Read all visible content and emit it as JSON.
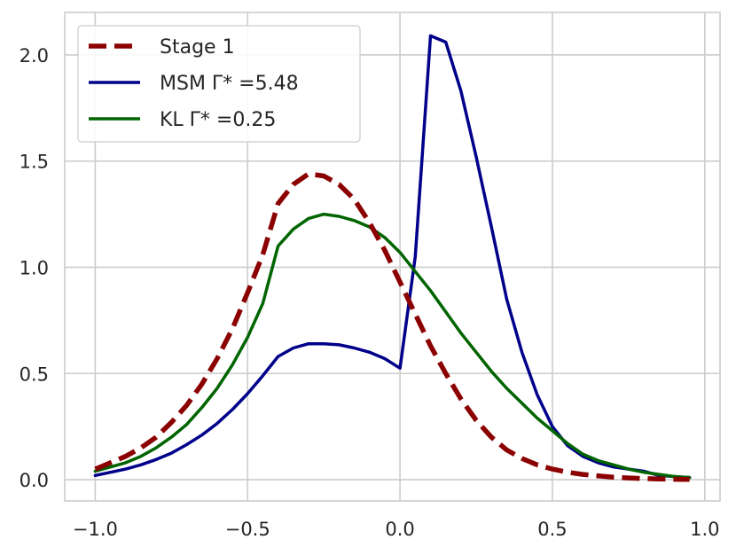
{
  "chart_data": {
    "type": "line",
    "title": "",
    "xlabel": "",
    "ylabel": "",
    "xlim": [
      -1.1,
      1.05
    ],
    "ylim": [
      -0.1,
      2.2
    ],
    "xticks": [
      -1.0,
      -0.5,
      0.0,
      0.5,
      1.0
    ],
    "xtick_labels": [
      "−1.0",
      "−0.5",
      "0.0",
      "0.5",
      "1.0"
    ],
    "yticks": [
      0.0,
      0.5,
      1.0,
      1.5,
      2.0
    ],
    "ytick_labels": [
      "0.0",
      "0.5",
      "1.0",
      "1.5",
      "2.0"
    ],
    "grid": true,
    "legend_position": "top-left",
    "series": [
      {
        "name": "Stage 1",
        "color": "#8b0000",
        "style": "dashed",
        "x": [
          -1.0,
          -0.95,
          -0.9,
          -0.85,
          -0.8,
          -0.75,
          -0.7,
          -0.65,
          -0.6,
          -0.55,
          -0.5,
          -0.45,
          -0.4,
          -0.35,
          -0.3,
          -0.25,
          -0.2,
          -0.15,
          -0.1,
          -0.05,
          0.0,
          0.05,
          0.1,
          0.15,
          0.2,
          0.25,
          0.3,
          0.35,
          0.4,
          0.45,
          0.5,
          0.55,
          0.6,
          0.65,
          0.7,
          0.75,
          0.8,
          0.85,
          0.9,
          0.95
        ],
        "values": [
          0.05,
          0.08,
          0.11,
          0.15,
          0.2,
          0.27,
          0.35,
          0.45,
          0.57,
          0.71,
          0.88,
          1.06,
          1.3,
          1.39,
          1.44,
          1.43,
          1.39,
          1.32,
          1.21,
          1.08,
          0.93,
          0.78,
          0.63,
          0.5,
          0.38,
          0.28,
          0.2,
          0.14,
          0.1,
          0.07,
          0.05,
          0.035,
          0.025,
          0.018,
          0.012,
          0.008,
          0.005,
          0.003,
          0.002,
          0.001
        ]
      },
      {
        "name": "MSM Γ* =5.48",
        "color": "#00008b",
        "style": "solid",
        "x": [
          -1.0,
          -0.95,
          -0.9,
          -0.85,
          -0.8,
          -0.75,
          -0.7,
          -0.65,
          -0.6,
          -0.55,
          -0.5,
          -0.45,
          -0.4,
          -0.35,
          -0.3,
          -0.25,
          -0.2,
          -0.15,
          -0.1,
          -0.05,
          0.0,
          0.05,
          0.1,
          0.15,
          0.2,
          0.25,
          0.3,
          0.35,
          0.4,
          0.45,
          0.5,
          0.55,
          0.6,
          0.65,
          0.7,
          0.75,
          0.8,
          0.85,
          0.9,
          0.95
        ],
        "values": [
          0.02,
          0.035,
          0.05,
          0.07,
          0.095,
          0.125,
          0.165,
          0.21,
          0.265,
          0.33,
          0.405,
          0.49,
          0.58,
          0.62,
          0.64,
          0.64,
          0.635,
          0.62,
          0.6,
          0.57,
          0.525,
          1.05,
          2.09,
          2.06,
          1.83,
          1.52,
          1.19,
          0.85,
          0.6,
          0.4,
          0.25,
          0.16,
          0.11,
          0.08,
          0.06,
          0.05,
          0.04,
          0.02,
          0.015,
          0.01
        ]
      },
      {
        "name": "KL Γ* =0.25",
        "color": "#006400",
        "style": "solid",
        "x": [
          -1.0,
          -0.95,
          -0.9,
          -0.85,
          -0.8,
          -0.75,
          -0.7,
          -0.65,
          -0.6,
          -0.55,
          -0.5,
          -0.45,
          -0.4,
          -0.35,
          -0.3,
          -0.25,
          -0.2,
          -0.15,
          -0.1,
          -0.05,
          0.0,
          0.05,
          0.1,
          0.15,
          0.2,
          0.25,
          0.3,
          0.35,
          0.4,
          0.45,
          0.5,
          0.55,
          0.6,
          0.65,
          0.7,
          0.75,
          0.8,
          0.85,
          0.9,
          0.95
        ],
        "values": [
          0.04,
          0.06,
          0.08,
          0.11,
          0.15,
          0.2,
          0.26,
          0.34,
          0.43,
          0.54,
          0.67,
          0.83,
          1.1,
          1.18,
          1.23,
          1.25,
          1.24,
          1.22,
          1.19,
          1.14,
          1.07,
          0.98,
          0.89,
          0.79,
          0.69,
          0.6,
          0.51,
          0.43,
          0.36,
          0.29,
          0.23,
          0.17,
          0.12,
          0.09,
          0.07,
          0.05,
          0.035,
          0.025,
          0.015,
          0.01
        ]
      }
    ]
  }
}
